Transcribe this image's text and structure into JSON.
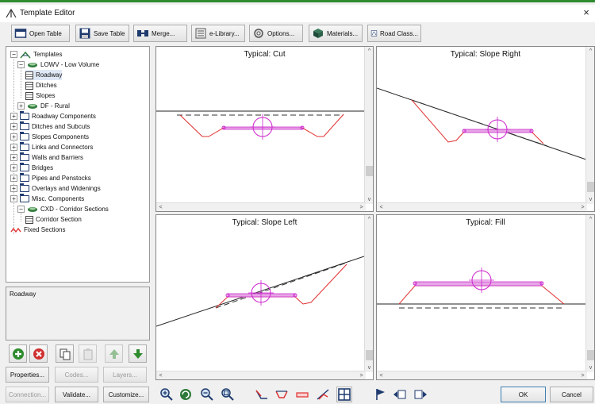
{
  "window": {
    "title": "Template Editor",
    "close_glyph": "×"
  },
  "toolbar": [
    {
      "label": "Open Table",
      "icon": "open-table-icon"
    },
    {
      "label": "Save Table",
      "icon": "save-table-icon"
    },
    {
      "label": "Merge...",
      "icon": "merge-icon"
    },
    {
      "label": "e-Library...",
      "icon": "e-library-icon"
    },
    {
      "label": "Options...",
      "icon": "options-icon"
    },
    {
      "label": "Materials...",
      "icon": "materials-icon"
    },
    {
      "label": "Road Class...",
      "icon": "road-class-icon"
    }
  ],
  "tree": {
    "items": [
      {
        "label": "Templates",
        "icon": "templates-root-icon",
        "expander": "−"
      },
      {
        "label": "LOWV - Low Volume",
        "icon": "library-icon",
        "expander": "−"
      },
      {
        "label": "Roadway",
        "icon": "template-icon",
        "selected": true
      },
      {
        "label": "Ditches",
        "icon": "template-icon"
      },
      {
        "label": "Slopes",
        "icon": "template-icon"
      },
      {
        "label": "DF - Rural",
        "icon": "library-icon",
        "expander": "+"
      },
      {
        "label": "Roadway Components",
        "icon": "folder-icon",
        "expander": "+"
      },
      {
        "label": "Ditches and Subcuts",
        "icon": "folder-icon",
        "expander": "+"
      },
      {
        "label": "Slopes Components",
        "icon": "folder-icon",
        "expander": "+"
      },
      {
        "label": "Links and Connectors",
        "icon": "folder-icon",
        "expander": "+"
      },
      {
        "label": "Walls and Barriers",
        "icon": "folder-icon",
        "expander": "+"
      },
      {
        "label": "Bridges",
        "icon": "folder-icon",
        "expander": "+"
      },
      {
        "label": "Pipes and Penstocks",
        "icon": "folder-icon",
        "expander": "+"
      },
      {
        "label": "Overlays and Widenings",
        "icon": "folder-icon",
        "expander": "+"
      },
      {
        "label": "Misc. Components",
        "icon": "folder-icon",
        "expander": "+"
      },
      {
        "label": "CXD - Corridor Sections",
        "icon": "library-icon",
        "expander": "−"
      },
      {
        "label": "Corridor Section",
        "icon": "template-icon"
      },
      {
        "label": "Fixed Sections",
        "icon": "fixed-sections-icon"
      }
    ]
  },
  "description": {
    "text": "Roadway"
  },
  "left_icon_buttons": [
    "add-icon",
    "delete-icon",
    "copy-icon",
    "paste-icon",
    "move-up-icon",
    "move-down-icon"
  ],
  "left_buttons": {
    "properties": "Properties...",
    "codes": "Codes...",
    "layers": "Layers...",
    "connection": "Connection...",
    "validate": "Validate...",
    "customize": "Customize..."
  },
  "panes": [
    {
      "title": "Typical: Cut"
    },
    {
      "title": "Typical: Slope Right"
    },
    {
      "title": "Typical: Slope Left"
    },
    {
      "title": "Typical: Fill"
    }
  ],
  "bottom_tools": [
    "zoom-in-icon",
    "refresh-icon",
    "zoom-out-icon",
    "zoom-extents-icon",
    "cut-ditch-icon",
    "template-ditch-icon",
    "pavement-icon",
    "slope-icon",
    "grid-view-icon",
    "flag-icon",
    "transition-left-icon",
    "transition-right-icon"
  ],
  "dialog": {
    "ok": "OK",
    "cancel": "Cancel"
  },
  "colors": {
    "window_border": "#2e8b2e",
    "component": "#cc22cc",
    "ground": "#e03030"
  }
}
